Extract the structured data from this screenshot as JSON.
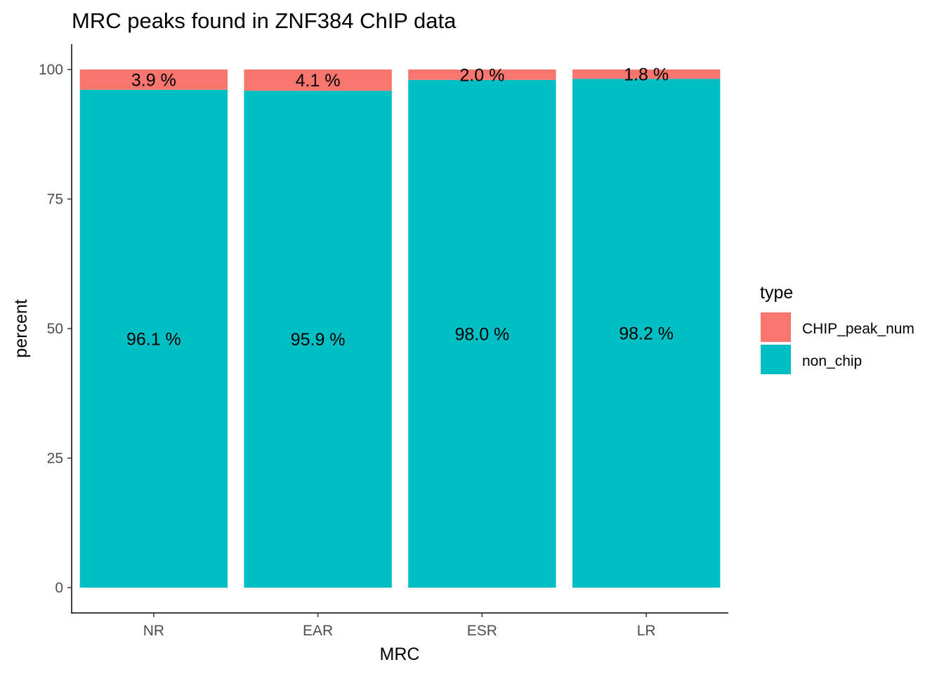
{
  "chart_data": {
    "type": "bar",
    "stacked": true,
    "title": "MRC peaks found in ZNF384 ChIP data",
    "xlabel": "MRC",
    "ylabel": "percent",
    "categories": [
      "NR",
      "EAR",
      "ESR",
      "LR"
    ],
    "ylim": [
      0,
      100
    ],
    "yticks": [
      0,
      25,
      50,
      75,
      100
    ],
    "grid": false,
    "legend": {
      "title": "type",
      "position": "right"
    },
    "series": [
      {
        "name": "CHIP_peak_num",
        "color": "#F8766D",
        "values": [
          3.9,
          4.1,
          2.0,
          1.8
        ],
        "labels": [
          "3.9 %",
          "4.1 %",
          "2.0 %",
          "1.8 %"
        ]
      },
      {
        "name": "non_chip",
        "color": "#00BFC4",
        "values": [
          96.1,
          95.9,
          98.0,
          98.2
        ],
        "labels": [
          "96.1 %",
          "95.9 %",
          "98.0 %",
          "98.2 %"
        ]
      }
    ]
  }
}
